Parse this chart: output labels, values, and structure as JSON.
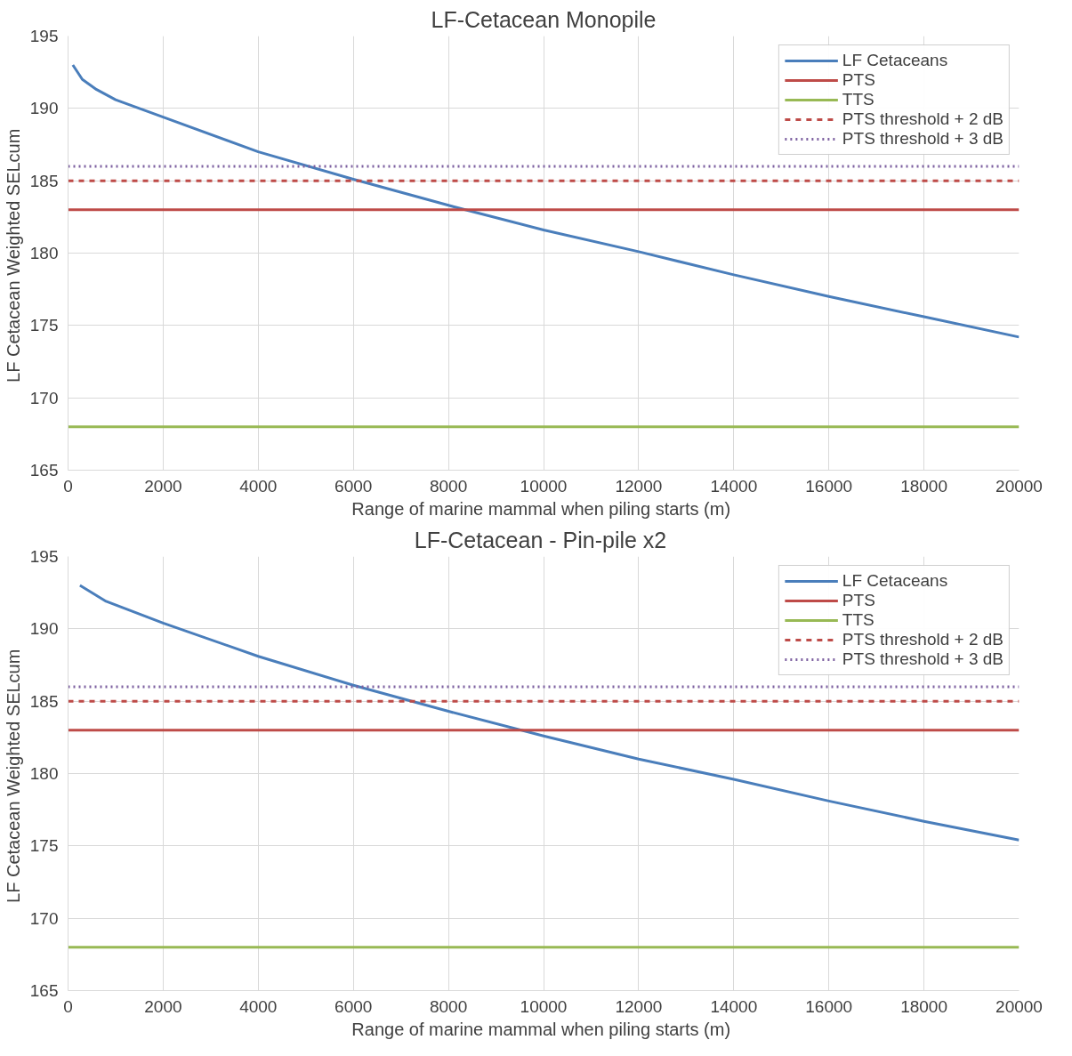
{
  "chart_data": [
    {
      "type": "line",
      "title": "LF-Cetacean Monopile",
      "xlabel": "Range of marine mammal  when piling starts (m)",
      "ylabel": "LF Cetacean Weighted  SELcum",
      "xlim": [
        0,
        20000
      ],
      "ylim": [
        165,
        195
      ],
      "xticks": [
        0,
        2000,
        4000,
        6000,
        8000,
        10000,
        12000,
        14000,
        16000,
        18000,
        20000
      ],
      "yticks": [
        165,
        170,
        175,
        180,
        185,
        190,
        195
      ],
      "grid": true,
      "legend": "top right",
      "series": [
        {
          "name": "LF Cetaceans",
          "color": "#4a7ebb",
          "line_style": "solid",
          "x": [
            100,
            300,
            600,
            1000,
            2000,
            4000,
            6000,
            8000,
            10000,
            12000,
            14000,
            16000,
            18000,
            20000
          ],
          "values": [
            193.0,
            192.0,
            191.3,
            190.6,
            189.4,
            187.0,
            185.1,
            183.3,
            181.6,
            180.1,
            178.5,
            177.0,
            175.6,
            174.2
          ]
        },
        {
          "name": "PTS",
          "color": "#be4b48",
          "line_style": "solid",
          "x": [
            0,
            20000
          ],
          "values": [
            183,
            183
          ]
        },
        {
          "name": "TTS",
          "color": "#98b954",
          "line_style": "solid",
          "x": [
            0,
            20000
          ],
          "values": [
            168,
            168
          ]
        },
        {
          "name": "PTS threshold + 2 dB",
          "color": "#be4b48",
          "line_style": "dashed",
          "x": [
            0,
            20000
          ],
          "values": [
            185,
            185
          ]
        },
        {
          "name": "PTS threshold + 3 dB",
          "color": "#7d60a0",
          "line_style": "dotted",
          "x": [
            0,
            20000
          ],
          "values": [
            186,
            186
          ]
        }
      ]
    },
    {
      "type": "line",
      "title": "LF-Cetacean  - Pin-pile x2",
      "xlabel": "Range of marine mammal  when piling starts (m)",
      "ylabel": "LF Cetacean Weighted  SELcum",
      "xlim": [
        0,
        20000
      ],
      "ylim": [
        165,
        195
      ],
      "xticks": [
        0,
        2000,
        4000,
        6000,
        8000,
        10000,
        12000,
        14000,
        16000,
        18000,
        20000
      ],
      "yticks": [
        165,
        170,
        175,
        180,
        185,
        190,
        195
      ],
      "grid": true,
      "legend": "top right",
      "series": [
        {
          "name": "LF Cetaceans",
          "color": "#4a7ebb",
          "line_style": "solid",
          "x": [
            250,
            800,
            2000,
            4000,
            6000,
            8000,
            10000,
            12000,
            14000,
            16000,
            18000,
            20000
          ],
          "values": [
            193.0,
            191.9,
            190.4,
            188.1,
            186.1,
            184.3,
            182.6,
            181.0,
            179.6,
            178.1,
            176.7,
            175.4
          ]
        },
        {
          "name": "PTS",
          "color": "#be4b48",
          "line_style": "solid",
          "x": [
            0,
            20000
          ],
          "values": [
            183,
            183
          ]
        },
        {
          "name": "TTS",
          "color": "#98b954",
          "line_style": "solid",
          "x": [
            0,
            20000
          ],
          "values": [
            168,
            168
          ]
        },
        {
          "name": "PTS threshold + 2 dB",
          "color": "#be4b48",
          "line_style": "dashed",
          "x": [
            0,
            20000
          ],
          "values": [
            185,
            185
          ]
        },
        {
          "name": "PTS threshold + 3 dB",
          "color": "#7d60a0",
          "line_style": "dotted",
          "x": [
            0,
            20000
          ],
          "values": [
            186,
            186
          ]
        }
      ]
    }
  ]
}
